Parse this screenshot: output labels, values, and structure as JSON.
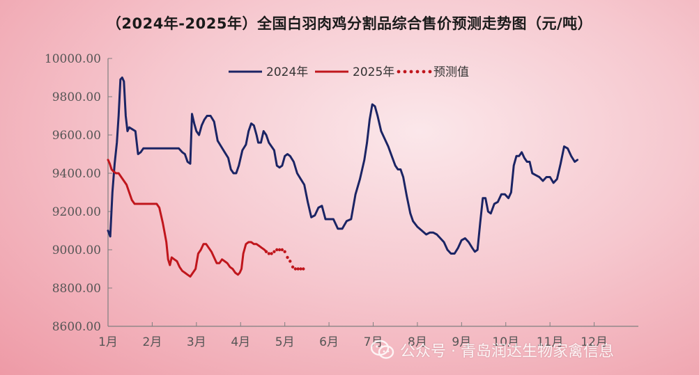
{
  "title": "（2024年-2025年）全国白羽肉鸡分割品综合售价预测走势图（元/吨）",
  "watermark": {
    "text": "公众号 · 青岛润达生物家禽信息",
    "icon": "wechat-icon"
  },
  "colors": {
    "s2024": "#1b2464",
    "s2025": "#c0161c",
    "forecast": "#c0161c",
    "axis": "#7f7f7f",
    "title": "#1a1a1a"
  },
  "chart_data": {
    "type": "line",
    "title": "（2024年-2025年）全国白羽肉鸡分割品综合售价预测走势图（元/吨）",
    "x_tick_labels": [
      "1月",
      "2月",
      "3月",
      "4月",
      "5月",
      "6月",
      "7月",
      "8月",
      "9月",
      "10月",
      "11月",
      "12月"
    ],
    "y_tick_labels": [
      "8600.00",
      "8800.00",
      "9000.00",
      "9200.00",
      "9400.00",
      "9600.00",
      "9800.00",
      "10000.00"
    ],
    "ylim": [
      8600,
      10000
    ],
    "xlim": [
      1,
      13
    ],
    "grid": false,
    "legend": {
      "position": "top-center",
      "entries": [
        "2024年",
        "2025年",
        "预测值"
      ]
    },
    "x_unit": "month (fractional)",
    "series": [
      {
        "name": "2024年",
        "style": "solid",
        "color": "#1b2464",
        "points": [
          [
            1.0,
            9100
          ],
          [
            1.05,
            9070
          ],
          [
            1.1,
            9300
          ],
          [
            1.15,
            9450
          ],
          [
            1.2,
            9560
          ],
          [
            1.24,
            9700
          ],
          [
            1.28,
            9890
          ],
          [
            1.32,
            9900
          ],
          [
            1.36,
            9880
          ],
          [
            1.4,
            9700
          ],
          [
            1.44,
            9620
          ],
          [
            1.48,
            9640
          ],
          [
            1.55,
            9630
          ],
          [
            1.62,
            9620
          ],
          [
            1.68,
            9500
          ],
          [
            1.74,
            9510
          ],
          [
            1.8,
            9530
          ],
          [
            2.0,
            9530
          ],
          [
            2.4,
            9530
          ],
          [
            2.6,
            9530
          ],
          [
            2.68,
            9510
          ],
          [
            2.74,
            9500
          ],
          [
            2.8,
            9460
          ],
          [
            2.86,
            9450
          ],
          [
            2.9,
            9710
          ],
          [
            2.95,
            9660
          ],
          [
            3.0,
            9620
          ],
          [
            3.06,
            9600
          ],
          [
            3.12,
            9650
          ],
          [
            3.18,
            9680
          ],
          [
            3.24,
            9700
          ],
          [
            3.32,
            9700
          ],
          [
            3.4,
            9670
          ],
          [
            3.48,
            9570
          ],
          [
            3.56,
            9540
          ],
          [
            3.64,
            9510
          ],
          [
            3.72,
            9480
          ],
          [
            3.78,
            9420
          ],
          [
            3.84,
            9400
          ],
          [
            3.9,
            9400
          ],
          [
            3.96,
            9440
          ],
          [
            4.04,
            9520
          ],
          [
            4.12,
            9550
          ],
          [
            4.18,
            9620
          ],
          [
            4.24,
            9660
          ],
          [
            4.3,
            9650
          ],
          [
            4.36,
            9600
          ],
          [
            4.4,
            9560
          ],
          [
            4.46,
            9560
          ],
          [
            4.52,
            9620
          ],
          [
            4.58,
            9600
          ],
          [
            4.64,
            9560
          ],
          [
            4.7,
            9540
          ],
          [
            4.76,
            9520
          ],
          [
            4.82,
            9440
          ],
          [
            4.88,
            9430
          ],
          [
            4.94,
            9440
          ],
          [
            5.0,
            9490
          ],
          [
            5.06,
            9500
          ],
          [
            5.12,
            9490
          ],
          [
            5.2,
            9460
          ],
          [
            5.28,
            9400
          ],
          [
            5.36,
            9370
          ],
          [
            5.44,
            9340
          ],
          [
            5.52,
            9250
          ],
          [
            5.6,
            9170
          ],
          [
            5.68,
            9180
          ],
          [
            5.76,
            9220
          ],
          [
            5.84,
            9230
          ],
          [
            5.92,
            9160
          ],
          [
            6.0,
            9160
          ],
          [
            6.1,
            9160
          ],
          [
            6.2,
            9110
          ],
          [
            6.3,
            9110
          ],
          [
            6.4,
            9150
          ],
          [
            6.5,
            9160
          ],
          [
            6.6,
            9290
          ],
          [
            6.7,
            9370
          ],
          [
            6.8,
            9470
          ],
          [
            6.86,
            9560
          ],
          [
            6.92,
            9680
          ],
          [
            6.98,
            9760
          ],
          [
            7.04,
            9750
          ],
          [
            7.1,
            9700
          ],
          [
            7.18,
            9620
          ],
          [
            7.26,
            9580
          ],
          [
            7.34,
            9540
          ],
          [
            7.42,
            9490
          ],
          [
            7.5,
            9440
          ],
          [
            7.56,
            9420
          ],
          [
            7.62,
            9420
          ],
          [
            7.68,
            9380
          ],
          [
            7.76,
            9280
          ],
          [
            7.84,
            9190
          ],
          [
            7.9,
            9150
          ],
          [
            8.0,
            9120
          ],
          [
            8.1,
            9100
          ],
          [
            8.2,
            9080
          ],
          [
            8.28,
            9090
          ],
          [
            8.36,
            9090
          ],
          [
            8.44,
            9080
          ],
          [
            8.52,
            9060
          ],
          [
            8.6,
            9040
          ],
          [
            8.68,
            9000
          ],
          [
            8.76,
            8980
          ],
          [
            8.84,
            8980
          ],
          [
            8.92,
            9010
          ],
          [
            9.0,
            9050
          ],
          [
            9.08,
            9060
          ],
          [
            9.16,
            9040
          ],
          [
            9.24,
            9010
          ],
          [
            9.3,
            8990
          ],
          [
            9.36,
            9000
          ],
          [
            9.42,
            9140
          ],
          [
            9.48,
            9270
          ],
          [
            9.54,
            9270
          ],
          [
            9.6,
            9200
          ],
          [
            9.66,
            9190
          ],
          [
            9.74,
            9240
          ],
          [
            9.82,
            9250
          ],
          [
            9.9,
            9290
          ],
          [
            9.98,
            9290
          ],
          [
            10.06,
            9270
          ],
          [
            10.12,
            9300
          ],
          [
            10.18,
            9440
          ],
          [
            10.24,
            9490
          ],
          [
            10.3,
            9490
          ],
          [
            10.36,
            9510
          ],
          [
            10.42,
            9480
          ],
          [
            10.48,
            9460
          ],
          [
            10.54,
            9460
          ],
          [
            10.6,
            9400
          ],
          [
            10.68,
            9390
          ],
          [
            10.76,
            9380
          ],
          [
            10.84,
            9360
          ],
          [
            10.92,
            9380
          ],
          [
            11.0,
            9380
          ],
          [
            11.08,
            9350
          ],
          [
            11.16,
            9370
          ],
          [
            11.24,
            9450
          ],
          [
            11.32,
            9540
          ],
          [
            11.4,
            9530
          ],
          [
            11.48,
            9490
          ],
          [
            11.56,
            9460
          ],
          [
            11.62,
            9470
          ]
        ]
      },
      {
        "name": "2025年",
        "style": "solid",
        "color": "#c0161c",
        "points": [
          [
            1.0,
            9470
          ],
          [
            1.04,
            9450
          ],
          [
            1.08,
            9420
          ],
          [
            1.12,
            9410
          ],
          [
            1.18,
            9400
          ],
          [
            1.24,
            9400
          ],
          [
            1.3,
            9380
          ],
          [
            1.36,
            9360
          ],
          [
            1.42,
            9340
          ],
          [
            1.48,
            9300
          ],
          [
            1.54,
            9260
          ],
          [
            1.6,
            9240
          ],
          [
            1.7,
            9240
          ],
          [
            1.8,
            9240
          ],
          [
            1.9,
            9240
          ],
          [
            2.0,
            9240
          ],
          [
            2.1,
            9240
          ],
          [
            2.16,
            9220
          ],
          [
            2.2,
            9180
          ],
          [
            2.24,
            9140
          ],
          [
            2.28,
            9090
          ],
          [
            2.32,
            9040
          ],
          [
            2.36,
            8950
          ],
          [
            2.4,
            8920
          ],
          [
            2.44,
            8960
          ],
          [
            2.5,
            8950
          ],
          [
            2.56,
            8940
          ],
          [
            2.62,
            8910
          ],
          [
            2.68,
            8890
          ],
          [
            2.74,
            8880
          ],
          [
            2.8,
            8870
          ],
          [
            2.86,
            8860
          ],
          [
            2.92,
            8880
          ],
          [
            2.98,
            8900
          ],
          [
            3.04,
            8980
          ],
          [
            3.1,
            9000
          ],
          [
            3.16,
            9030
          ],
          [
            3.22,
            9030
          ],
          [
            3.28,
            9010
          ],
          [
            3.34,
            8990
          ],
          [
            3.4,
            8960
          ],
          [
            3.46,
            8930
          ],
          [
            3.52,
            8930
          ],
          [
            3.58,
            8950
          ],
          [
            3.64,
            8940
          ],
          [
            3.7,
            8930
          ],
          [
            3.76,
            8910
          ],
          [
            3.82,
            8900
          ],
          [
            3.88,
            8880
          ],
          [
            3.94,
            8870
          ],
          [
            3.98,
            8880
          ],
          [
            4.02,
            8900
          ],
          [
            4.06,
            8980
          ],
          [
            4.12,
            9030
          ],
          [
            4.18,
            9040
          ],
          [
            4.24,
            9040
          ],
          [
            4.3,
            9030
          ],
          [
            4.36,
            9030
          ],
          [
            4.42,
            9020
          ],
          [
            4.48,
            9010
          ],
          [
            4.54,
            9000
          ],
          [
            4.58,
            8990
          ]
        ]
      },
      {
        "name": "预测值",
        "style": "dotted",
        "color": "#c0161c",
        "points": [
          [
            4.58,
            8990
          ],
          [
            4.64,
            8980
          ],
          [
            4.7,
            8980
          ],
          [
            4.76,
            8990
          ],
          [
            4.82,
            9000
          ],
          [
            4.88,
            9000
          ],
          [
            4.94,
            9000
          ],
          [
            5.0,
            8990
          ],
          [
            5.06,
            8960
          ],
          [
            5.12,
            8940
          ],
          [
            5.18,
            8910
          ],
          [
            5.24,
            8900
          ],
          [
            5.3,
            8900
          ],
          [
            5.36,
            8900
          ],
          [
            5.42,
            8900
          ]
        ]
      }
    ]
  }
}
